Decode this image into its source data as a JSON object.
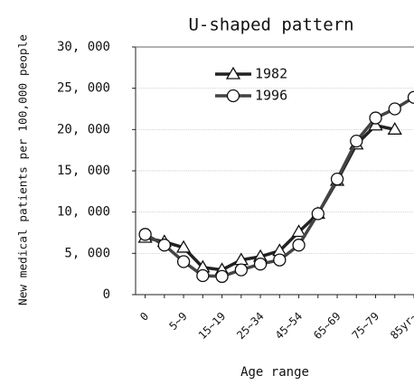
{
  "chart_data": {
    "type": "line",
    "title": "U-shaped pattern",
    "x_label": "Age range",
    "y_label": "New medical patients per 100,000 people",
    "categories": [
      "0",
      null,
      "5~9",
      null,
      "15~19",
      null,
      "25~34",
      null,
      "45~54",
      null,
      "65~69",
      null,
      "75~79",
      null,
      "85yr~"
    ],
    "series": [
      {
        "name": "1982",
        "color": "#222222",
        "marker": "triangle",
        "values": [
          6900,
          6400,
          5700,
          3300,
          3000,
          4200,
          4600,
          5300,
          7600,
          9800,
          13800,
          18200,
          20500,
          20000,
          null
        ]
      },
      {
        "name": "1996",
        "color": "#444444",
        "marker": "circle",
        "values": [
          7300,
          6000,
          4000,
          2300,
          2200,
          3000,
          3700,
          4200,
          6000,
          9800,
          14000,
          18600,
          21400,
          22500,
          23900
        ]
      }
    ],
    "ylim": [
      0,
      30000
    ],
    "yticks": [
      0,
      {
        "value": 5000,
        "label": "5, 000"
      },
      {
        "value": 10000,
        "label": "10, 000"
      },
      {
        "value": 15000,
        "label": "15, 000"
      },
      {
        "value": 20000,
        "label": "20, 000"
      },
      {
        "value": 25000,
        "label": "25, 000"
      },
      {
        "value": 30000,
        "label": "30, 000"
      }
    ],
    "grid": true,
    "legend": "top-left"
  }
}
